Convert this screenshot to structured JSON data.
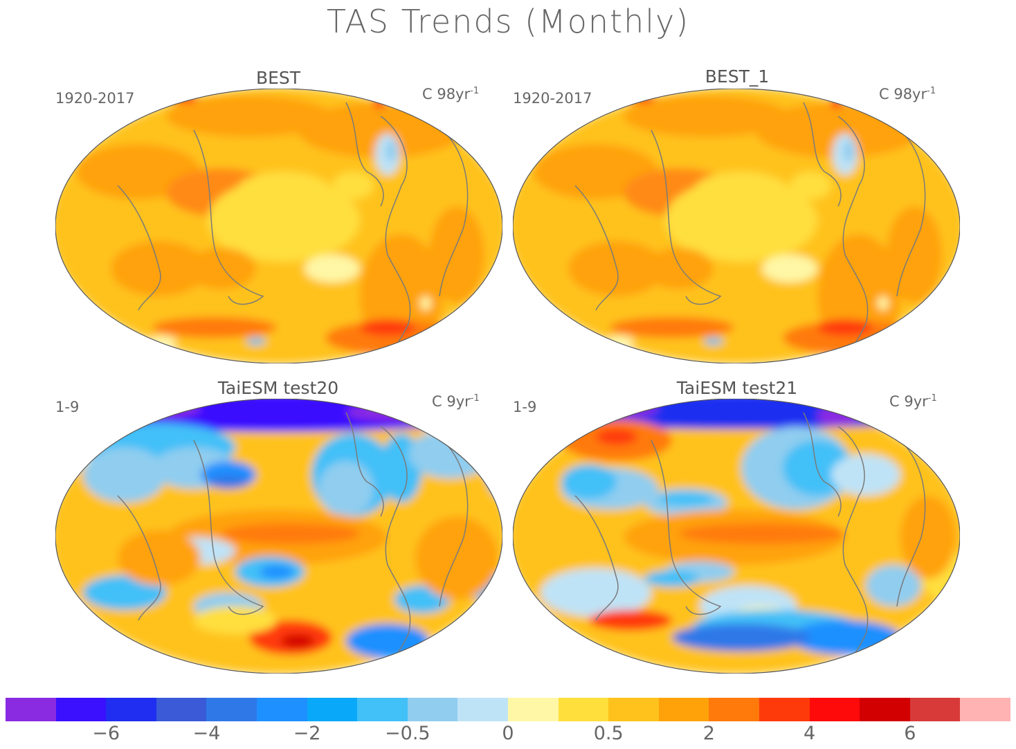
{
  "title": "TAS Trends (Monthly)",
  "panels": [
    {
      "title": "BEST",
      "left_label": "1920-2017",
      "unit_prefix": "C 98yr",
      "unit_exp": "-1",
      "style": "warm"
    },
    {
      "title": "BEST_1",
      "left_label": "1920-2017",
      "unit_prefix": "C 98yr",
      "unit_exp": "-1",
      "style": "warm"
    },
    {
      "title": "TaiESM test20",
      "left_label": "1-9",
      "unit_prefix": "C 9yr",
      "unit_exp": "-1",
      "style": "mixed20"
    },
    {
      "title": "TaiESM test21",
      "left_label": "1-9",
      "unit_prefix": "C 9yr",
      "unit_exp": "-1",
      "style": "mixed21"
    }
  ],
  "colorbar": {
    "colors": [
      "#8a2be2",
      "#3a10ff",
      "#1f2ef0",
      "#3a5ad8",
      "#2f78e8",
      "#1e90ff",
      "#0aa8f8",
      "#42c0f8",
      "#90cdef",
      "#bfe3f6",
      "#fff7a6",
      "#ffdf3c",
      "#ffc21c",
      "#ffa20a",
      "#ff7a0a",
      "#ff3a0a",
      "#ff0a0a",
      "#d20000",
      "#d83a3a",
      "#ffb3b3"
    ],
    "tick_labels": [
      "-6",
      "-4",
      "-2",
      "-0.5",
      "0",
      "0.5",
      "2",
      "4",
      "6"
    ]
  }
}
